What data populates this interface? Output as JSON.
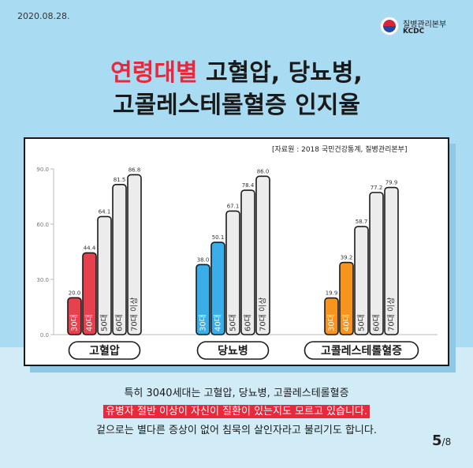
{
  "date": "2020.08.28.",
  "logo": {
    "name": "질병관리본부",
    "abbr": "KCDC"
  },
  "title": {
    "highlight": "연령대별",
    "line1_rest": " 고혈압, 당뇨병,",
    "line2": "고콜레스테롤혈증 인지율"
  },
  "source": "[자료원 : 2018 국민건강통계, 질병관리본부]",
  "chart_data": {
    "type": "bar",
    "ylim": [
      0,
      90
    ],
    "yticks": [
      "0.0",
      "30.0",
      "60.0",
      "90.0"
    ],
    "categories": [
      "30대",
      "40대",
      "50대",
      "60대",
      "70대 이상"
    ],
    "groups": [
      {
        "name": "고혈압",
        "values": [
          20.0,
          44.4,
          64.1,
          81.5,
          86.8
        ],
        "color": "#e8414e"
      },
      {
        "name": "당뇨병",
        "values": [
          38.0,
          50.1,
          67.1,
          78.4,
          86.0
        ],
        "color": "#3aaee8"
      },
      {
        "name": "고콜레스테롤혈증",
        "values": [
          19.9,
          39.2,
          58.7,
          77.2,
          79.9
        ],
        "color": "#f7941d"
      }
    ],
    "neutral_color": "#ececec"
  },
  "text": {
    "line1": "특히 3040세대는 고혈압, 당뇨병, 고콜레스테롤혈증",
    "line2": "유병자 절반 이상이 자신이 질환이 있는지도 모르고 있습니다.",
    "line3": "겉으로는 별다른 증상이 없어 침묵의 살인자라고 불리기도 합니다."
  },
  "page": {
    "current": "5",
    "total": "/8"
  }
}
